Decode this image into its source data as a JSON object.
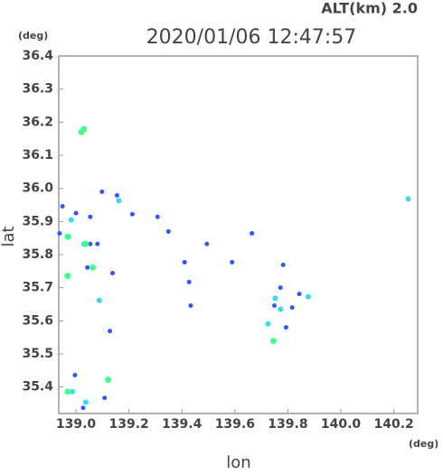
{
  "chart_data": {
    "type": "scatter",
    "header": "ALT(km)  2.0",
    "title": "2020/01/06 12:47:57",
    "y_unit": "(deg)",
    "x_unit": "(deg)",
    "ylabel": "lat",
    "xlabel": "lon",
    "xlim": [
      138.935,
      140.29
    ],
    "ylim": [
      35.32,
      36.4
    ],
    "xticks": [
      {
        "value": 139,
        "label": "139.0"
      },
      139.2,
      139.4,
      139.6,
      139.8,
      {
        "value": 140,
        "label": "140.0"
      },
      140.2
    ],
    "yticks": [
      35.4,
      35.5,
      35.6,
      35.7,
      35.8,
      35.9,
      {
        "value": 36,
        "label": "36.0"
      },
      36.1,
      36.2,
      36.3,
      36.4
    ],
    "series": [
      {
        "color": "#3355ff",
        "marker_size": 2.5,
        "x": [
          139.098,
          139.155,
          139.213,
          139.308,
          139.349,
          139.41,
          139.427,
          139.433,
          139.494,
          139.589,
          139.664,
          139.749,
          139.772,
          139.793,
          139.816,
          139.843,
          139.782,
          139.0,
          139.054,
          139.043,
          139.081,
          139.138,
          139.128,
          138.949,
          138.938,
          139.108,
          138.996,
          139.027,
          139.054
        ],
        "y": [
          35.99,
          35.979,
          35.922,
          35.914,
          35.87,
          35.777,
          35.717,
          35.646,
          35.832,
          35.777,
          35.864,
          35.646,
          35.7,
          35.58,
          35.64,
          35.681,
          35.769,
          35.925,
          35.914,
          35.761,
          35.832,
          35.744,
          35.569,
          35.946,
          35.864,
          35.367,
          35.436,
          35.337,
          35.832
        ]
      },
      {
        "color": "#33ddee",
        "marker_size": 3,
        "x": [
          138.982,
          138.972,
          139.162,
          139.752,
          139.725,
          139.772,
          139.877,
          138.986,
          139.037,
          138.966,
          139.088,
          140.254,
          139.03
        ],
        "y": [
          35.905,
          35.854,
          35.963,
          35.668,
          35.591,
          35.635,
          35.673,
          35.386,
          35.354,
          35.736,
          35.662,
          35.968,
          35.832
        ]
      },
      {
        "color": "#44ff88",
        "marker_size": 3.5,
        "x": [
          139.02,
          139.03,
          138.969,
          139.121,
          139.037,
          139.064,
          138.969,
          138.969,
          139.745
        ],
        "y": [
          36.17,
          36.179,
          35.386,
          35.422,
          35.832,
          35.761,
          35.736,
          35.854,
          35.539
        ]
      }
    ]
  }
}
